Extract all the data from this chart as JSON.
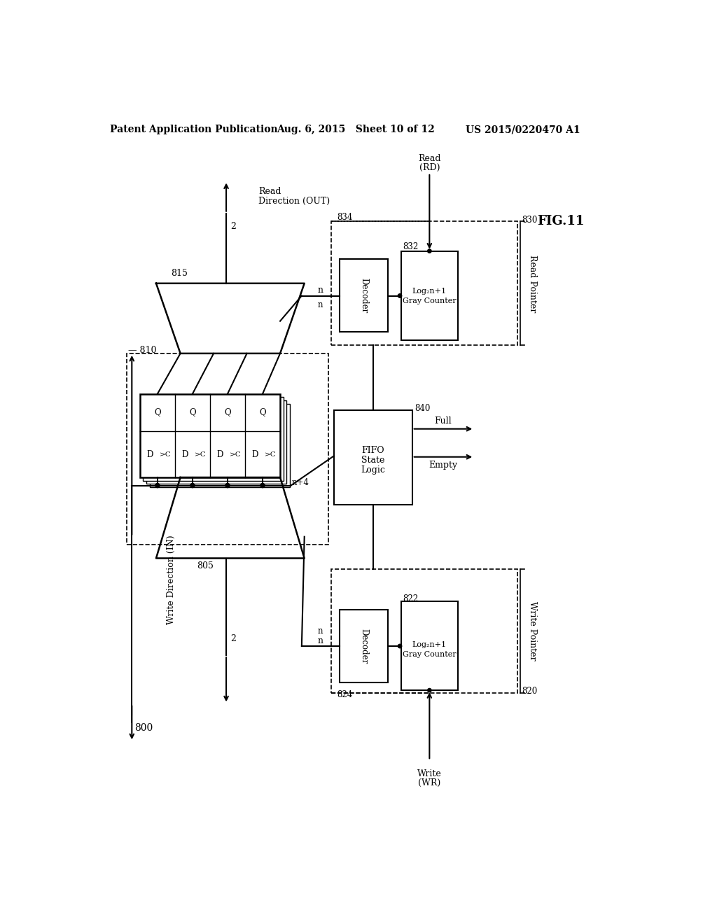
{
  "bg_color": "#ffffff",
  "header_left": "Patent Application Publication",
  "header_mid": "Aug. 6, 2015   Sheet 10 of 12",
  "header_right": "US 2015/0220470 A1",
  "fig_label": "FIG.11",
  "diagram_label": "800"
}
